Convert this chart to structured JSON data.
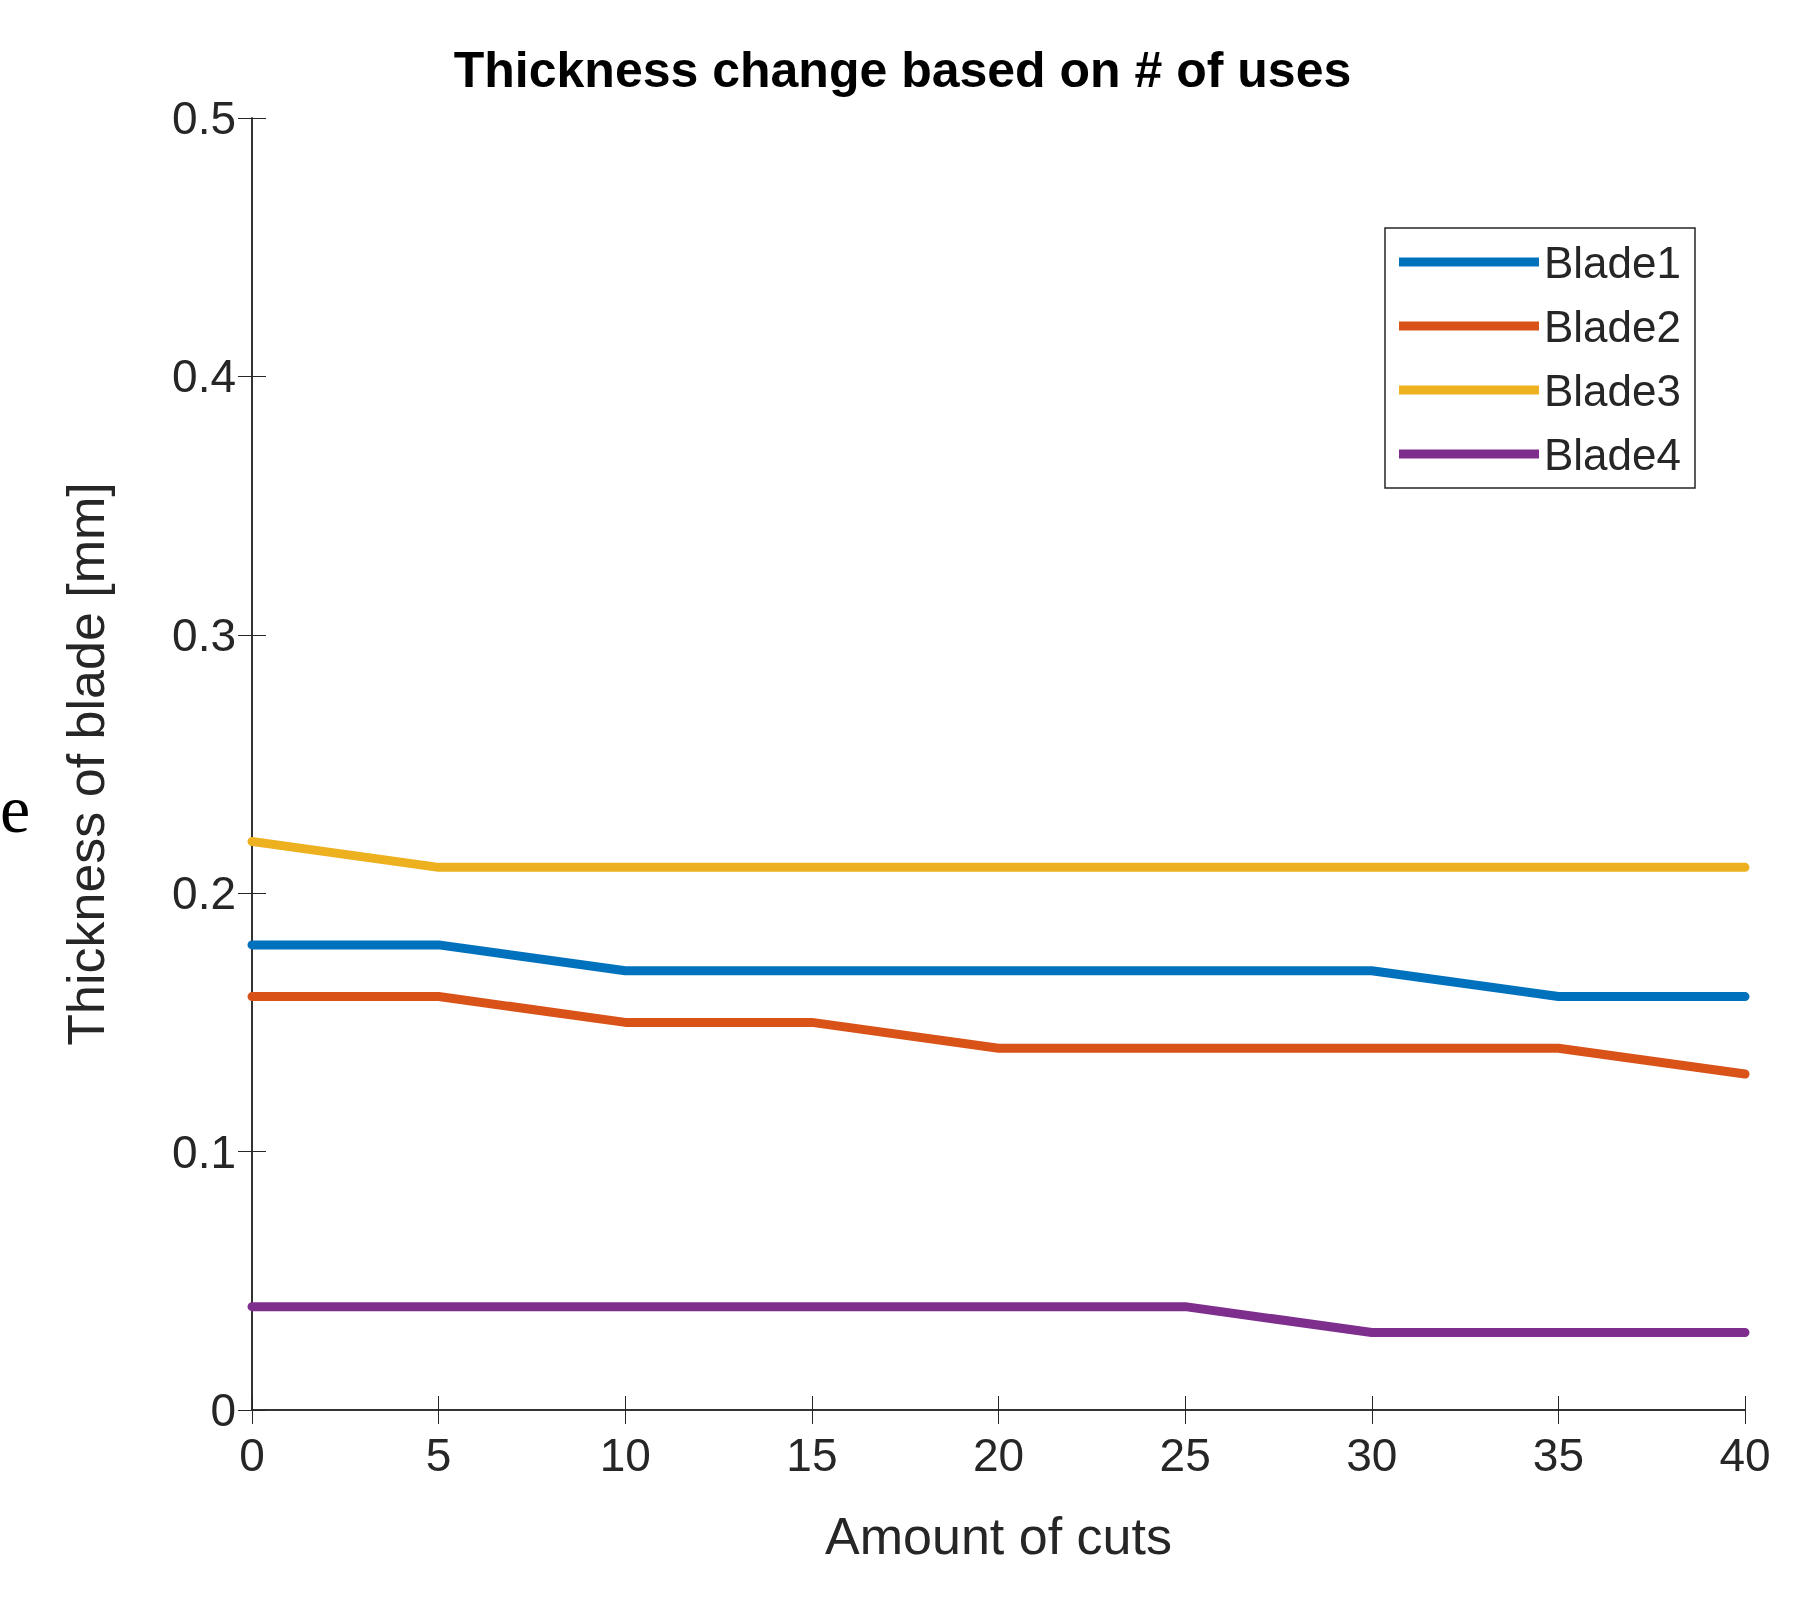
{
  "chart_data": {
    "type": "line",
    "title": "Thickness change based on # of uses",
    "xlabel": "Amount of cuts",
    "ylabel": "Thickness of blade [mm]",
    "x": [
      0,
      5,
      10,
      15,
      20,
      25,
      30,
      35,
      40
    ],
    "series": [
      {
        "name": "Blade1",
        "color": "#0072bd",
        "values": [
          0.18,
          0.18,
          0.17,
          0.17,
          0.17,
          0.17,
          0.17,
          0.16,
          0.16
        ]
      },
      {
        "name": "Blade2",
        "color": "#d95319",
        "values": [
          0.16,
          0.16,
          0.15,
          0.15,
          0.14,
          0.14,
          0.14,
          0.14,
          0.13
        ]
      },
      {
        "name": "Blade3",
        "color": "#edb120",
        "values": [
          0.22,
          0.21,
          0.21,
          0.21,
          0.21,
          0.21,
          0.21,
          0.21,
          0.21
        ]
      },
      {
        "name": "Blade4",
        "color": "#7e2f8e",
        "values": [
          0.04,
          0.04,
          0.04,
          0.04,
          0.04,
          0.04,
          0.03,
          0.03,
          0.03
        ]
      }
    ],
    "xlim": [
      0,
      40
    ],
    "xticks": [
      0,
      5,
      10,
      15,
      20,
      25,
      30,
      35,
      40
    ],
    "ylim": [
      0,
      0.5
    ],
    "yticks": [
      0,
      0.1,
      0.2,
      0.3,
      0.4,
      0.5
    ],
    "grid": false,
    "legend": "top right",
    "marker": "none",
    "line_style": "solid",
    "annotations": [
      "e"
    ]
  }
}
